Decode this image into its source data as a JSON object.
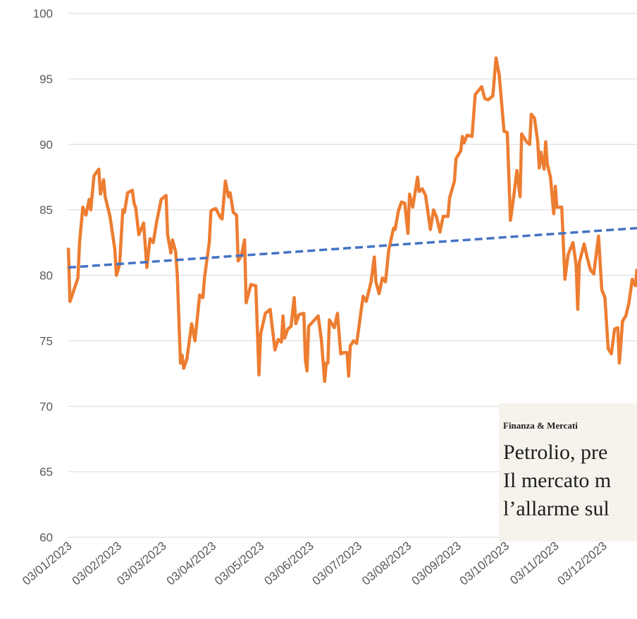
{
  "chart_data": {
    "type": "line",
    "xlim": [
      0,
      355
    ],
    "xticks": [
      {
        "value": 0,
        "label": "03/01/2023"
      },
      {
        "value": 31,
        "label": "03/02/2023"
      },
      {
        "value": 59,
        "label": "03/03/2023"
      },
      {
        "value": 90,
        "label": "03/04/2023"
      },
      {
        "value": 120,
        "label": "03/05/2023"
      },
      {
        "value": 151,
        "label": "03/06/2023"
      },
      {
        "value": 181,
        "label": "03/07/2023"
      },
      {
        "value": 212,
        "label": "03/08/2023"
      },
      {
        "value": 243,
        "label": "03/09/2023"
      },
      {
        "value": 273,
        "label": "03/10/2023"
      },
      {
        "value": 304,
        "label": "03/11/2023"
      },
      {
        "value": 334,
        "label": "03/12/2023"
      }
    ],
    "ylim": [
      60,
      100
    ],
    "yticks": [
      60,
      65,
      70,
      75,
      80,
      85,
      90,
      95,
      100
    ],
    "grid": true,
    "series": [
      {
        "color": "#ed7d31",
        "dash": false,
        "x": [
          0,
          1,
          3,
          6,
          7,
          9,
          11,
          13,
          14,
          16,
          19,
          20,
          22,
          23,
          26,
          28,
          29,
          30,
          32,
          34,
          35,
          37,
          40,
          41,
          42,
          44,
          47,
          49,
          51,
          53,
          55,
          58,
          61,
          62,
          64,
          65,
          67,
          68,
          70,
          71,
          72,
          74,
          77,
          79,
          82,
          84,
          85,
          88,
          89,
          90,
          92,
          95,
          96,
          98,
          100,
          101,
          103,
          105,
          106,
          108,
          110,
          111,
          114,
          117,
          119,
          120,
          123,
          126,
          129,
          131,
          133,
          134,
          135,
          137,
          139,
          141,
          142,
          144,
          147,
          148,
          149,
          150,
          153,
          156,
          158,
          160,
          161,
          162,
          163,
          166,
          168,
          170,
          172,
          174,
          175,
          176,
          178,
          180,
          182,
          184,
          186,
          189,
          191,
          192,
          194,
          196,
          198,
          200,
          203,
          204,
          206,
          208,
          210,
          212,
          213,
          215,
          218,
          219,
          221,
          223,
          226,
          228,
          230,
          232,
          234,
          237,
          238,
          241,
          242,
          245,
          246,
          247,
          249,
          252,
          254,
          256,
          258,
          260,
          262,
          265,
          267,
          269,
          272,
          274,
          276,
          278,
          280,
          282,
          283,
          286,
          288,
          289,
          291,
          293,
          294,
          295,
          297,
          298,
          299,
          301,
          303,
          304,
          305,
          308,
          310,
          312,
          315,
          317,
          318,
          319,
          322,
          324,
          326,
          328,
          331,
          333,
          335,
          337,
          339,
          341,
          343,
          344,
          346,
          348,
          350,
          352,
          354,
          355
        ],
        "values": [
          82.1,
          78.0,
          78.7,
          79.8,
          82.5,
          85.2,
          84.6,
          85.8,
          85.0,
          87.6,
          88.1,
          86.2,
          87.3,
          86.0,
          84.5,
          82.8,
          82.0,
          80.0,
          80.8,
          85.0,
          84.8,
          86.3,
          86.5,
          85.5,
          85.2,
          83.1,
          84.0,
          80.6,
          82.8,
          82.5,
          84.0,
          85.8,
          86.1,
          83.1,
          81.7,
          82.7,
          81.8,
          80.0,
          73.3,
          73.9,
          72.9,
          73.6,
          76.3,
          75.0,
          78.5,
          78.3,
          79.8,
          82.5,
          84.9,
          85.0,
          85.1,
          84.4,
          84.3,
          87.2,
          86.0,
          86.3,
          84.8,
          84.6,
          81.1,
          81.5,
          82.7,
          77.9,
          79.3,
          79.2,
          72.4,
          75.5,
          77.1,
          77.4,
          74.3,
          75.1,
          74.9,
          76.9,
          75.2,
          75.9,
          76.1,
          78.3,
          76.3,
          77.0,
          77.1,
          73.5,
          72.7,
          76.1,
          76.5,
          76.9,
          75.0,
          71.9,
          73.3,
          73.3,
          76.6,
          76.0,
          77.1,
          74.0,
          74.1,
          74.1,
          72.3,
          74.6,
          75.0,
          74.8,
          76.6,
          78.4,
          78.0,
          79.5,
          81.4,
          79.5,
          78.6,
          79.8,
          79.5,
          81.9,
          83.6,
          83.5,
          84.9,
          85.6,
          85.5,
          83.2,
          86.2,
          85.2,
          87.5,
          86.4,
          86.6,
          86.1,
          83.5,
          85.0,
          84.4,
          83.3,
          84.5,
          84.5,
          85.9,
          87.2,
          88.9,
          89.5,
          90.6,
          90.1,
          90.7,
          90.6,
          93.8,
          94.1,
          94.4,
          93.5,
          93.4,
          93.7,
          96.6,
          95.3,
          91.0,
          90.9,
          84.2,
          86.0,
          88.0,
          86.0,
          90.8,
          90.2,
          90.0,
          92.3,
          92.0,
          90.2,
          88.2,
          89.4,
          88.1,
          90.2,
          88.5,
          87.5,
          84.7,
          86.8,
          85.2,
          85.2,
          79.7,
          81.6,
          82.5,
          80.8,
          77.4,
          81.0,
          82.4,
          81.3,
          80.4,
          80.1,
          83.0,
          78.9,
          78.3,
          74.4,
          74.0,
          75.9,
          76.0,
          73.3,
          76.5,
          76.9,
          77.9,
          79.7,
          79.2,
          80.5
        ]
      },
      {
        "color": "#4472c4",
        "dash": true,
        "x": [
          0,
          355
        ],
        "values": [
          80.6,
          83.6
        ]
      }
    ],
    "annotations": [
      "Finanza & Mercati",
      "Petrolio, pre",
      "Il mercato m",
      "l’allarme sul"
    ]
  }
}
